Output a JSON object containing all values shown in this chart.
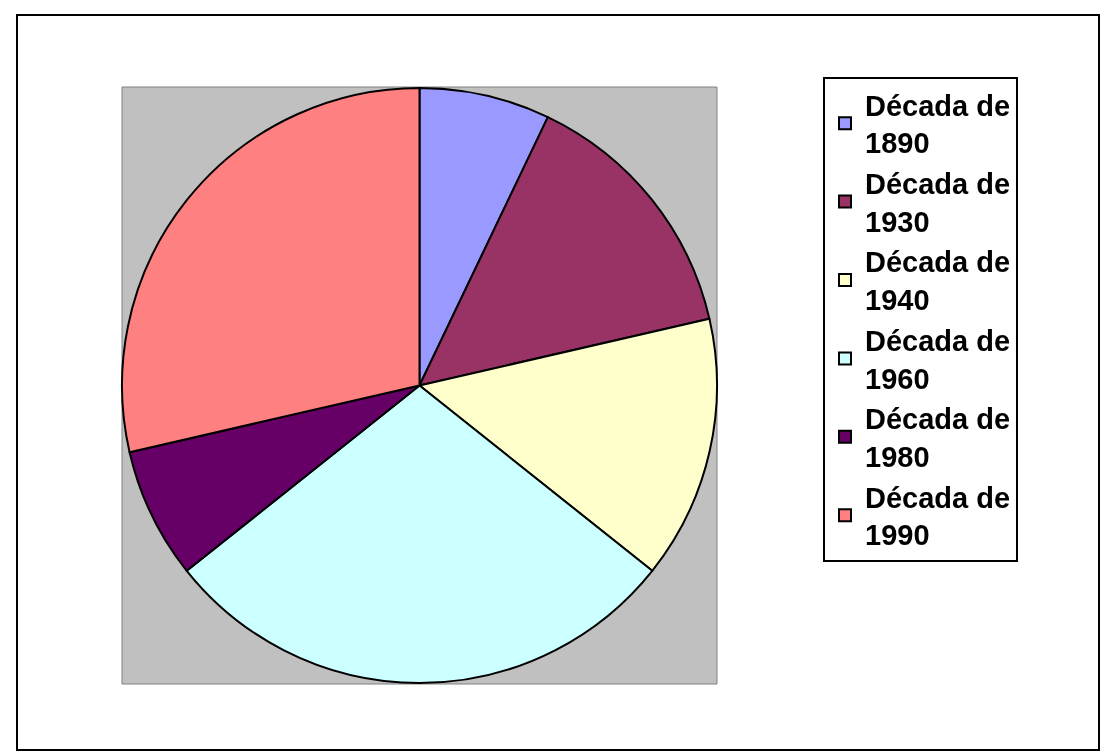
{
  "chart_data": {
    "type": "pie",
    "categories": [
      "Década de 1890",
      "Década de 1930",
      "Década de 1940",
      "Década de 1960",
      "Década de 1980",
      "Década de 1990"
    ],
    "values": [
      7.1,
      14.3,
      14.3,
      28.6,
      7.1,
      28.6
    ],
    "colors": [
      "#9999ff",
      "#993366",
      "#ffffcc",
      "#ccffff",
      "#660066",
      "#ff8080"
    ],
    "legend": "right"
  }
}
